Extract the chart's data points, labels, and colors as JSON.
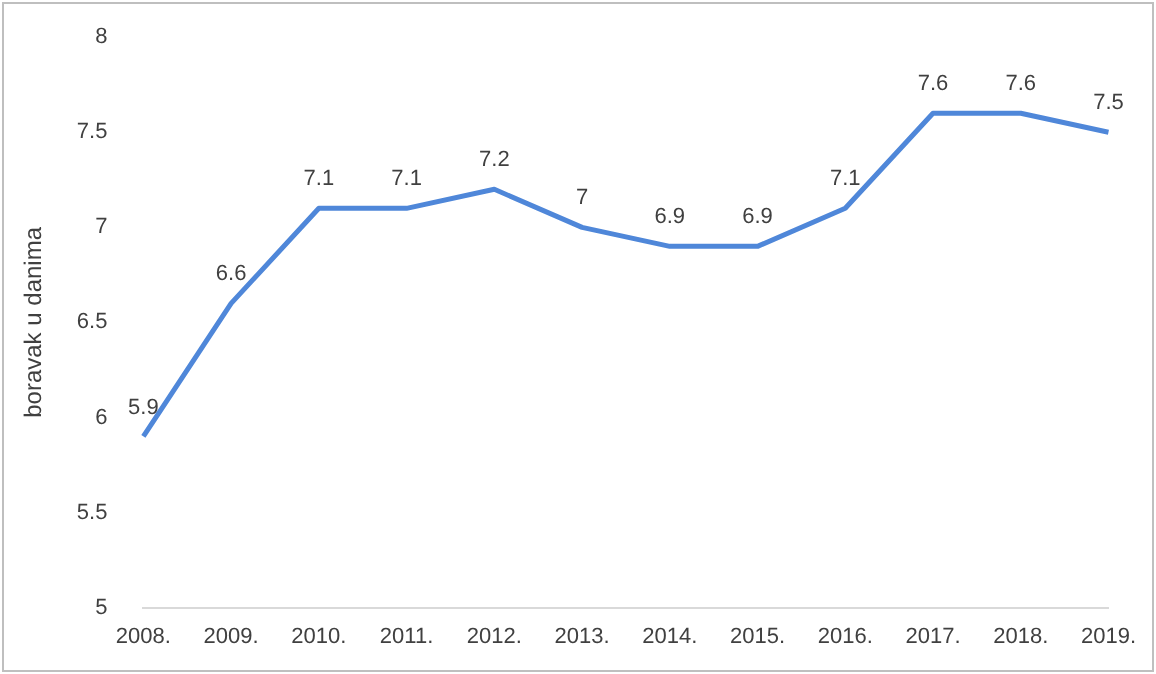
{
  "chart_data": {
    "type": "line",
    "ylabel": "boravak u danima",
    "categories": [
      "2008.",
      "2009.",
      "2010.",
      "2011.",
      "2012.",
      "2013.",
      "2014.",
      "2015.",
      "2016.",
      "2017.",
      "2018.",
      "2019."
    ],
    "series": [
      {
        "color": "#4f87d9",
        "values": [
          5.9,
          6.6,
          7.1,
          7.1,
          7.2,
          7,
          6.9,
          6.9,
          7.1,
          7.6,
          7.6,
          7.5
        ]
      }
    ],
    "ylim": [
      5,
      8
    ],
    "yticks": [
      5,
      5.5,
      6,
      6.5,
      7,
      7.5,
      8
    ],
    "data_labels": true,
    "legend": false,
    "grid": false,
    "marker": "none",
    "line_style": "solid"
  }
}
